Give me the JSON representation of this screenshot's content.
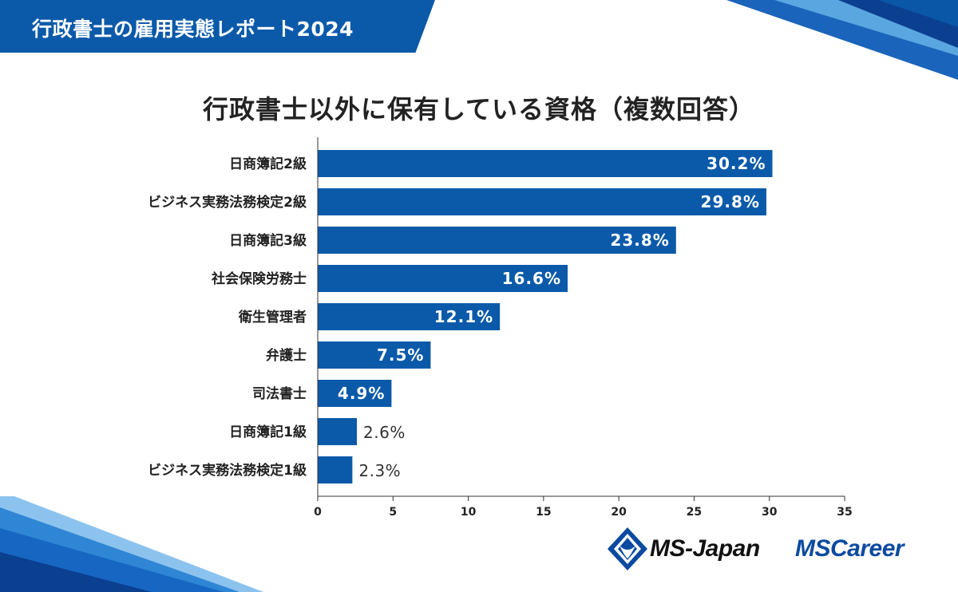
{
  "header": {
    "title": "行政書士の雇用実態レポート2024"
  },
  "colors": {
    "bar": "#0b5aaa",
    "accent": "#0b5aaa",
    "logo_blue": "#0b4aa0"
  },
  "logos": {
    "ms_japan": "MS-Japan",
    "ms_career": "MSCareer"
  },
  "chart_data": {
    "type": "bar",
    "orientation": "horizontal",
    "title": "行政書士以外に保有している資格（複数回答）",
    "categories": [
      "日商簿記2級",
      "ビジネス実務法務検定2級",
      "日商簿記3級",
      "社会保険労務士",
      "衛生管理者",
      "弁護士",
      "司法書士",
      "日商簿記1級",
      "ビジネス実務法務検定1級"
    ],
    "values": [
      30.2,
      29.8,
      23.8,
      16.6,
      12.1,
      7.5,
      4.9,
      2.6,
      2.3
    ],
    "value_labels": [
      "30.2%",
      "29.8%",
      "23.8%",
      "16.6%",
      "12.1%",
      "7.5%",
      "4.9%",
      "2.6%",
      "2.3%"
    ],
    "xlim": [
      0,
      35
    ],
    "xticks": [
      0,
      5,
      10,
      15,
      20,
      25,
      30,
      35
    ],
    "xlabel": "",
    "ylabel": "",
    "grid": false,
    "legend": "none"
  }
}
